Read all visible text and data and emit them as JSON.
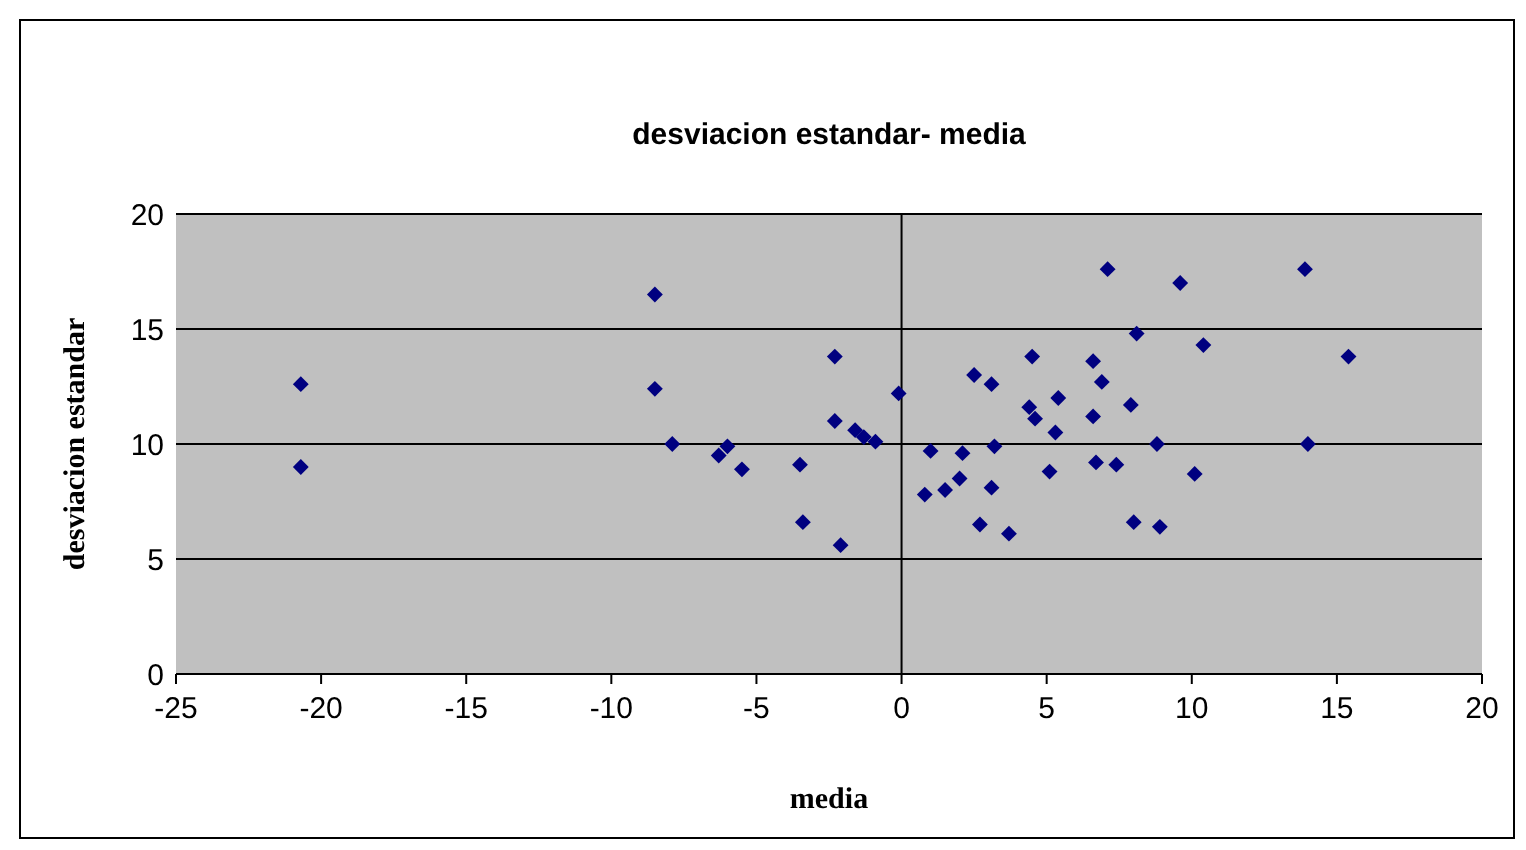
{
  "chart_data": {
    "type": "scatter",
    "title": "desviacion estandar- media",
    "xlabel": "media",
    "ylabel": "desviacion estandar",
    "xlim": [
      -25,
      20
    ],
    "xticks": [
      -25,
      -20,
      -15,
      -10,
      -5,
      0,
      5,
      10,
      15,
      20
    ],
    "ylim": [
      0,
      20
    ],
    "yticks": [
      0,
      5,
      10,
      15,
      20
    ],
    "grid": "y",
    "marker": "diamond",
    "ref_lines": [
      {
        "axis": "x",
        "value": 0,
        "color": "#000000"
      }
    ],
    "series": [
      {
        "color": "#000080",
        "x": [
          -20.7,
          -20.7,
          -8.5,
          -8.5,
          -7.9,
          -6.3,
          -6.0,
          -5.5,
          -3.5,
          -3.4,
          -2.3,
          -2.3,
          -1.6,
          -1.3,
          -2.1,
          -0.9,
          -0.1,
          1.0,
          0.8,
          1.5,
          2.0,
          2.1,
          3.2,
          3.1,
          2.7,
          3.7,
          2.5,
          3.1,
          4.5,
          4.4,
          4.6,
          5.3,
          5.4,
          5.1,
          6.6,
          6.9,
          6.6,
          7.1,
          6.7,
          7.4,
          8.1,
          7.9,
          8.8,
          8.0,
          8.9,
          9.6,
          10.4,
          10.1,
          13.9,
          14.0,
          15.4
        ],
        "values": [
          12.6,
          9.0,
          16.5,
          12.4,
          10.0,
          9.5,
          9.9,
          8.9,
          9.1,
          6.6,
          13.8,
          11.0,
          10.6,
          10.3,
          5.6,
          10.1,
          12.2,
          9.7,
          7.8,
          8.0,
          8.5,
          9.6,
          9.9,
          8.1,
          6.5,
          6.1,
          13.0,
          12.6,
          13.8,
          11.6,
          11.1,
          10.5,
          12.0,
          8.8,
          13.6,
          12.7,
          11.2,
          17.6,
          9.2,
          9.1,
          14.8,
          11.7,
          10.0,
          6.6,
          6.4,
          17.0,
          14.3,
          8.7,
          17.6,
          10.0,
          13.8
        ]
      }
    ]
  }
}
